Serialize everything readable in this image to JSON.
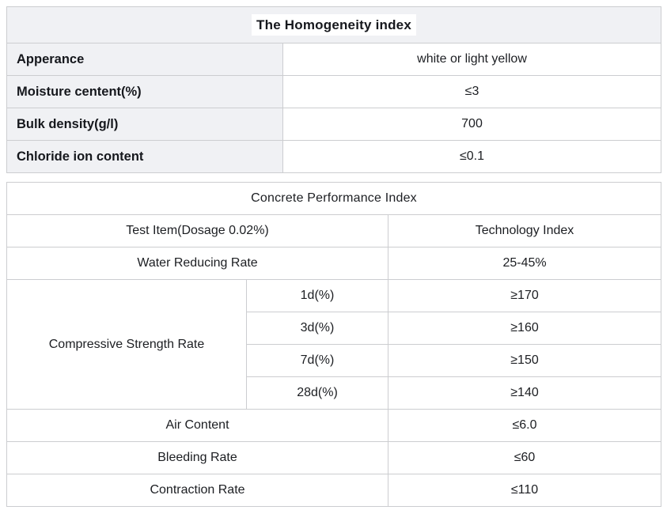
{
  "colors": {
    "shaded_cell_bg": "#f0f1f4",
    "border": "#cccdd0",
    "title_highlight_bg": "#ffffff",
    "text": "#16181d"
  },
  "table1": {
    "title": "The Homogeneity index",
    "rows": [
      {
        "label": "Apperance",
        "value": "white or light yellow"
      },
      {
        "label": "Moisture centent(%)",
        "value": "≤3"
      },
      {
        "label": "Bulk density(g/l)",
        "value": "700"
      },
      {
        "label": "Chloride ion content",
        "value": "≤0.1"
      }
    ]
  },
  "table2": {
    "title": "Concrete Performance Index",
    "headers": {
      "test_item": "Test Item(Dosage 0.02%)",
      "technology_index": "Technology Index"
    },
    "water_reducing": {
      "label": "Water Reducing Rate",
      "value": "25-45%"
    },
    "compressive": {
      "label": "Compressive Strength Rate",
      "rows": [
        {
          "sub": "1d(%)",
          "value": "≥170"
        },
        {
          "sub": "3d(%)",
          "value": "≥160"
        },
        {
          "sub": "7d(%)",
          "value": "≥150"
        },
        {
          "sub": "28d(%)",
          "value": "≥140"
        }
      ]
    },
    "bottom_rows": [
      {
        "label": "Air Content",
        "value": "≤6.0"
      },
      {
        "label": "Bleeding Rate",
        "value": "≤60"
      },
      {
        "label": "Contraction Rate",
        "value": "≤110"
      }
    ]
  }
}
